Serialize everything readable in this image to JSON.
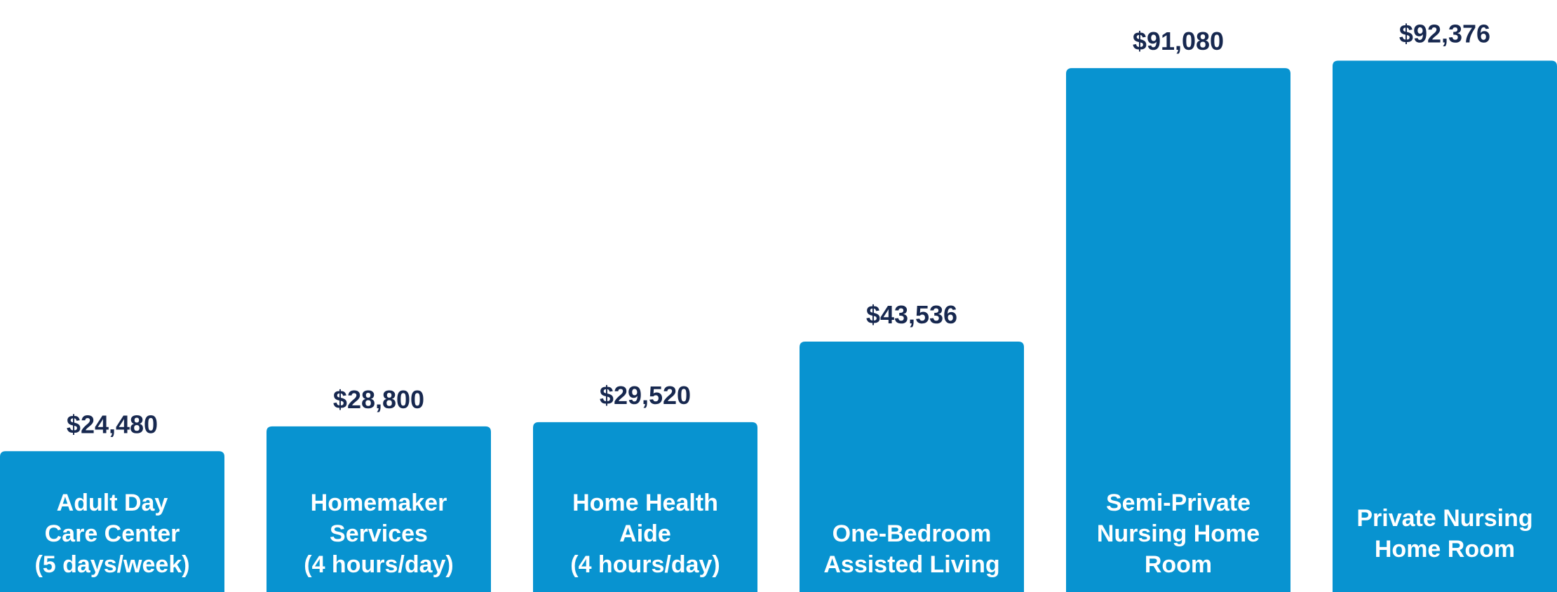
{
  "chart_data": {
    "type": "bar",
    "categories": [
      [
        "Adult Day",
        "Care Center",
        "(5 days/week)"
      ],
      [
        "Homemaker",
        "Services",
        "(4 hours/day)"
      ],
      [
        "Home Health",
        "Aide",
        "(4 hours/day)"
      ],
      [
        "One-Bedroom",
        "Assisted Living"
      ],
      [
        "Semi-Private",
        "Nursing Home",
        "Room"
      ],
      [
        "Private Nursing",
        "Home Room"
      ]
    ],
    "values": [
      24480,
      28800,
      29520,
      43536,
      91080,
      92376
    ],
    "value_labels": [
      "$24,480",
      "$28,800",
      "$29,520",
      "$43,536",
      "$91,080",
      "$92,376"
    ],
    "title": "",
    "xlabel": "",
    "ylabel": "",
    "grid": false,
    "colors": {
      "bar": "#0893d0",
      "value_text": "#17284f",
      "category_text": "#ffffff",
      "background": "#ffffff"
    }
  }
}
